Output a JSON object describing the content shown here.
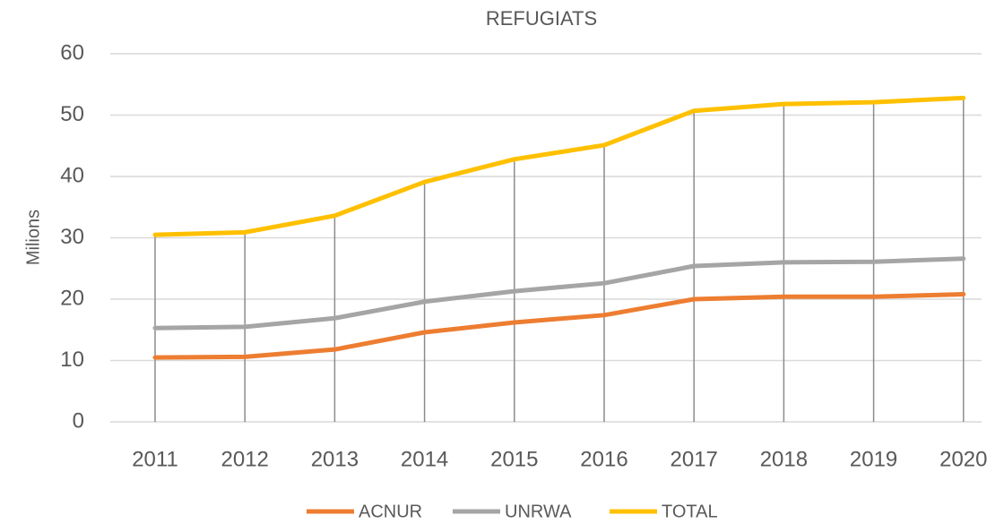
{
  "chart_data": {
    "type": "line",
    "title": "REFUGIATS",
    "y_label": "Milions",
    "categories": [
      "2011",
      "2012",
      "2013",
      "2014",
      "2015",
      "2016",
      "2017",
      "2018",
      "2019",
      "2020"
    ],
    "series": [
      {
        "name": "ACNUR",
        "color": "#ed7d31",
        "values": [
          10.5,
          10.6,
          11.8,
          14.6,
          16.2,
          17.4,
          20.0,
          20.4,
          20.4,
          20.8
        ]
      },
      {
        "name": "UNRWA",
        "color": "#a5a5a5",
        "values": [
          15.3,
          15.5,
          16.9,
          19.6,
          21.3,
          22.6,
          25.4,
          26.0,
          26.1,
          26.6
        ]
      },
      {
        "name": "TOTAL",
        "color": "#ffc000",
        "values": [
          30.5,
          30.9,
          33.6,
          39.1,
          42.8,
          45.1,
          50.7,
          51.8,
          52.1,
          52.8
        ]
      }
    ],
    "ylim": [
      0,
      60
    ],
    "yticks": [
      0,
      10,
      20,
      30,
      40,
      50,
      60
    ],
    "grid": true,
    "drop_lines": true,
    "legend": "bottom"
  }
}
